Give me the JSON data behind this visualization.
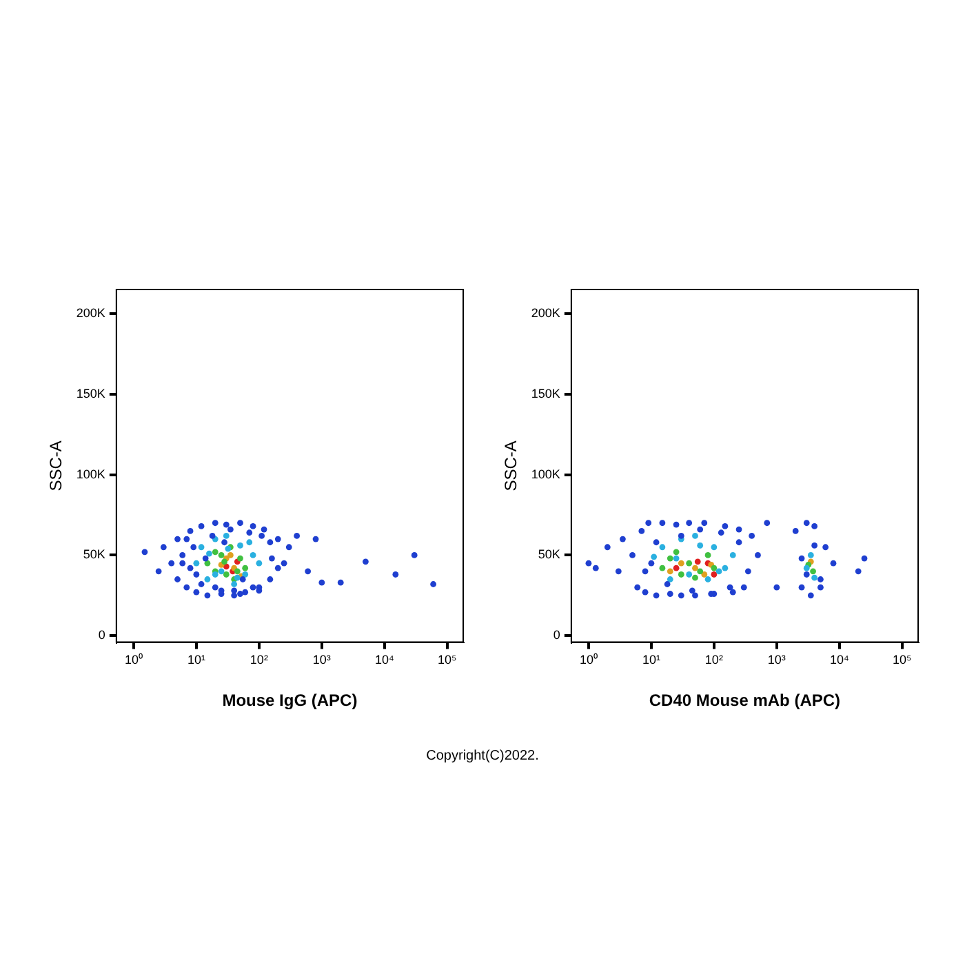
{
  "chart_data": [
    {
      "type": "scatter",
      "xlabel": "Mouse IgG (APC)",
      "ylabel": "SSC-A",
      "log": "x",
      "grid": false,
      "legend": false,
      "marker": "circle",
      "xlim": [
        0.53,
        180000
      ],
      "ylim": [
        -4000,
        215000
      ],
      "xticks": [
        {
          "value": 1,
          "label": "10⁰"
        },
        {
          "value": 10,
          "label": "10¹"
        },
        {
          "value": 100,
          "label": "10²"
        },
        {
          "value": 1000,
          "label": "10³"
        },
        {
          "value": 10000,
          "label": "10⁴"
        },
        {
          "value": 100000,
          "label": "10⁵"
        }
      ],
      "yticks": [
        0,
        {
          "value": 50000,
          "label": "50K"
        },
        {
          "value": 100000,
          "label": "100K"
        },
        {
          "value": 150000,
          "label": "150K"
        },
        {
          "value": 200000,
          "label": "200K"
        }
      ],
      "annotations": [
        "Copyright(C)2022."
      ],
      "series": [
        {
          "color": "#1f3fd0",
          "x": [
            1.5,
            2.5,
            3,
            4,
            5,
            5,
            6,
            7,
            8,
            8,
            10,
            12,
            15,
            20,
            25,
            30,
            40,
            50,
            60,
            80,
            100,
            120,
            150,
            200,
            250,
            300,
            400,
            600,
            800,
            1000,
            2000,
            5000,
            15000,
            30000,
            60000,
            6,
            9,
            12,
            18,
            25,
            35,
            50,
            70,
            100,
            150,
            200,
            7,
            10,
            14,
            20,
            28,
            40,
            55,
            80,
            110,
            160
          ],
          "values": [
            52000,
            40000,
            55000,
            45000,
            60000,
            35000,
            50000,
            30000,
            65000,
            42000,
            27000,
            68000,
            25000,
            70000,
            26000,
            69000,
            25000,
            70000,
            27000,
            68000,
            30000,
            66000,
            35000,
            60000,
            45000,
            55000,
            62000,
            40000,
            60000,
            33000,
            33000,
            46000,
            38000,
            50000,
            32000,
            45000,
            55000,
            32000,
            62000,
            28000,
            66000,
            26000,
            64000,
            28000,
            58000,
            42000,
            60000,
            38000,
            48000,
            30000,
            58000,
            28000,
            35000,
            30000,
            62000,
            48000
          ]
        },
        {
          "color": "#2ab0e0",
          "x": [
            10,
            12,
            15,
            20,
            25,
            32,
            40,
            50,
            60,
            80,
            100,
            16,
            20,
            30,
            45,
            70
          ],
          "values": [
            45000,
            55000,
            35000,
            60000,
            40000,
            54000,
            32000,
            56000,
            38000,
            50000,
            45000,
            51000,
            38000,
            62000,
            36000,
            58000
          ]
        },
        {
          "color": "#40c040",
          "x": [
            15,
            20,
            25,
            30,
            35,
            40,
            50,
            60,
            20,
            28,
            45
          ],
          "values": [
            45000,
            40000,
            50000,
            38000,
            55000,
            35000,
            48000,
            42000,
            52000,
            46000,
            40000
          ]
        },
        {
          "color": "#e0a020",
          "x": [
            25,
            30,
            40,
            52,
            35
          ],
          "values": [
            44000,
            48000,
            42000,
            37000,
            50000
          ]
        },
        {
          "color": "#e02020",
          "x": [
            30,
            38,
            45
          ],
          "values": [
            43000,
            40000,
            46000
          ]
        }
      ]
    },
    {
      "type": "scatter",
      "xlabel": "CD40 Mouse mAb (APC)",
      "ylabel": "SSC-A",
      "log": "x",
      "grid": false,
      "legend": false,
      "marker": "circle",
      "xlim": [
        0.53,
        180000
      ],
      "ylim": [
        -4000,
        215000
      ],
      "xticks": [
        {
          "value": 1,
          "label": "10⁰"
        },
        {
          "value": 10,
          "label": "10¹"
        },
        {
          "value": 100,
          "label": "10²"
        },
        {
          "value": 1000,
          "label": "10³"
        },
        {
          "value": 10000,
          "label": "10⁴"
        },
        {
          "value": 100000,
          "label": "10⁵"
        }
      ],
      "yticks": [
        0,
        {
          "value": 50000,
          "label": "50K"
        },
        {
          "value": 100000,
          "label": "100K"
        },
        {
          "value": 150000,
          "label": "150K"
        },
        {
          "value": 200000,
          "label": "200K"
        }
      ],
      "series": [
        {
          "color": "#1f3fd0",
          "x": [
            1,
            1.3,
            2,
            3,
            3.5,
            5,
            6,
            7,
            8,
            9,
            10,
            12,
            15,
            20,
            25,
            30,
            40,
            50,
            70,
            100,
            150,
            200,
            250,
            300,
            400,
            500,
            700,
            1000,
            2000,
            2500,
            3000,
            3500,
            4000,
            5000,
            6000,
            8000,
            25000,
            20000,
            8,
            12,
            18,
            30,
            45,
            60,
            90,
            130,
            180,
            250,
            350,
            2500,
            3000,
            4000,
            5000
          ],
          "values": [
            45000,
            42000,
            55000,
            40000,
            60000,
            50000,
            30000,
            65000,
            27000,
            70000,
            45000,
            25000,
            70000,
            26000,
            69000,
            25000,
            70000,
            25000,
            70000,
            26000,
            68000,
            27000,
            66000,
            30000,
            62000,
            50000,
            70000,
            30000,
            65000,
            30000,
            70000,
            25000,
            68000,
            35000,
            55000,
            45000,
            48000,
            40000,
            40000,
            58000,
            32000,
            62000,
            28000,
            66000,
            26000,
            64000,
            30000,
            58000,
            40000,
            48000,
            38000,
            56000,
            30000
          ]
        },
        {
          "color": "#2ab0e0",
          "x": [
            11,
            15,
            20,
            30,
            40,
            60,
            80,
            100,
            150,
            200,
            3000,
            3500,
            4000,
            25,
            50,
            120
          ],
          "values": [
            49000,
            55000,
            35000,
            60000,
            38000,
            56000,
            35000,
            55000,
            42000,
            50000,
            42000,
            50000,
            36000,
            48000,
            62000,
            40000
          ]
        },
        {
          "color": "#40c040",
          "x": [
            15,
            20,
            30,
            40,
            60,
            80,
            100,
            3200,
            3800,
            25,
            50
          ],
          "values": [
            42000,
            48000,
            38000,
            45000,
            40000,
            50000,
            42000,
            44000,
            40000,
            52000,
            36000
          ]
        },
        {
          "color": "#e0a020",
          "x": [
            20,
            30,
            50,
            70,
            90,
            3500
          ],
          "values": [
            40000,
            45000,
            42000,
            38000,
            44000,
            46000
          ]
        },
        {
          "color": "#e02020",
          "x": [
            25,
            55,
            80,
            100
          ],
          "values": [
            42000,
            46000,
            45000,
            38000
          ]
        }
      ]
    }
  ]
}
